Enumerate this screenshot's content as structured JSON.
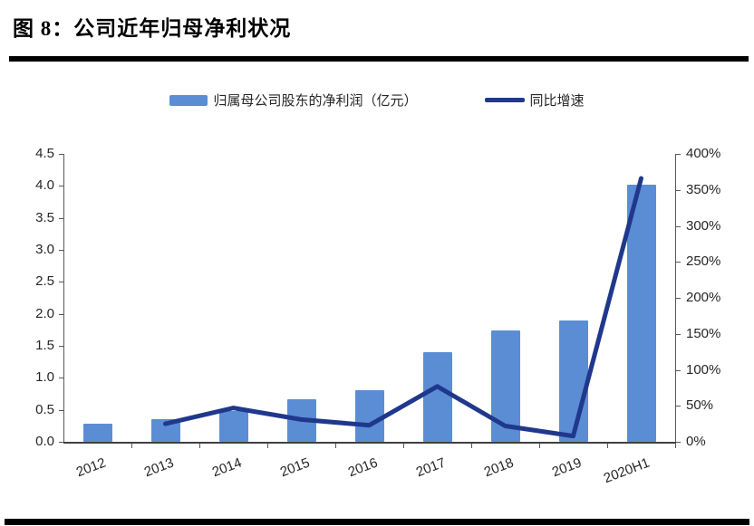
{
  "title": "图 8：公司近年归母净利状况",
  "legend": {
    "bar_label": "归属母公司股东的净利润（亿元）",
    "line_label": "同比增速"
  },
  "colors": {
    "bar": "#5B8DD5",
    "line": "#20388C",
    "axis": "#595959",
    "text": "#262626",
    "rule": "#000000"
  },
  "chart_data": {
    "type": "bar",
    "subtype": "bar+line combo, dual axis",
    "categories": [
      "2012",
      "2013",
      "2014",
      "2015",
      "2016",
      "2017",
      "2018",
      "2019",
      "2020H1"
    ],
    "series": [
      {
        "name": "归属母公司股东的净利润（亿元）",
        "type": "bar",
        "axis": "left",
        "values": [
          0.28,
          0.35,
          0.48,
          0.66,
          0.8,
          1.4,
          1.74,
          1.89,
          4.02
        ]
      },
      {
        "name": "同比增速",
        "type": "line",
        "axis": "right",
        "unit": "%",
        "values": [
          null,
          25,
          47,
          31,
          23,
          77,
          22,
          8,
          366
        ]
      }
    ],
    "left_axis": {
      "min": 0,
      "max": 4.5,
      "step": 0.5,
      "tick_labels": [
        "0.0",
        "0.5",
        "1.0",
        "1.5",
        "2.0",
        "2.5",
        "3.0",
        "3.5",
        "4.0",
        "4.5"
      ]
    },
    "right_axis": {
      "min": 0,
      "max": 400,
      "step": 50,
      "tick_labels": [
        "0%",
        "50%",
        "100%",
        "150%",
        "200%",
        "250%",
        "300%",
        "350%",
        "400%"
      ]
    },
    "legend_position": "top",
    "grid": false,
    "x_label_rotation_deg": -21
  }
}
